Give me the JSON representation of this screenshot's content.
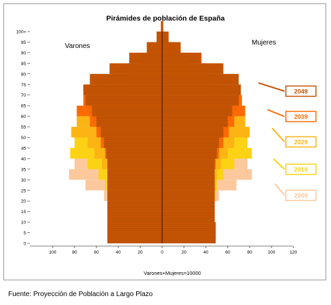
{
  "chart_data": {
    "type": "population-pyramid",
    "title": "Pirámides de población de España",
    "left_label": "Varones",
    "right_label": "Mujeres",
    "xlabel": "Varones+Mujeres=10000",
    "x_ticks_left": [
      "100",
      "80",
      "60",
      "40",
      "20",
      "0"
    ],
    "x_ticks_right": [
      "20",
      "40",
      "60",
      "80",
      "100",
      "120"
    ],
    "y_ticks": [
      "0",
      "5",
      "10",
      "15",
      "20",
      "25",
      "30",
      "35",
      "40",
      "45",
      "50",
      "55",
      "60",
      "65",
      "70",
      "75",
      "80",
      "85",
      "90",
      "95",
      "100+"
    ],
    "xlim_left": [
      100,
      0
    ],
    "xlim_right": [
      0,
      120
    ],
    "ages": [
      0,
      5,
      10,
      15,
      20,
      25,
      30,
      35,
      40,
      45,
      50,
      55,
      60,
      65,
      70,
      75,
      80,
      85,
      90,
      95,
      100
    ],
    "series": [
      {
        "name": "2009",
        "color": "#fcc89c",
        "men": [
          50,
          50,
          50,
          50,
          53,
          70,
          85,
          80,
          68,
          58,
          52,
          47,
          43,
          36,
          30,
          25,
          18,
          11,
          5,
          2,
          1
        ],
        "women": [
          49,
          49,
          48,
          48,
          52,
          68,
          82,
          78,
          66,
          57,
          52,
          48,
          46,
          42,
          38,
          34,
          26,
          17,
          8,
          3,
          1
        ]
      },
      {
        "name": "2019",
        "color": "#fcd214",
        "men": [
          50,
          50,
          50,
          50,
          50,
          52,
          58,
          68,
          84,
          80,
          67,
          56,
          48,
          42,
          34,
          28,
          20,
          13,
          6,
          2,
          1
        ],
        "women": [
          49,
          49,
          48,
          48,
          49,
          50,
          56,
          66,
          82,
          78,
          66,
          56,
          50,
          47,
          43,
          38,
          28,
          19,
          9,
          3,
          1
        ]
      },
      {
        "name": "2029",
        "color": "#fcb414",
        "men": [
          50,
          50,
          50,
          50,
          50,
          50,
          50,
          55,
          62,
          68,
          83,
          78,
          65,
          54,
          45,
          35,
          25,
          15,
          7,
          3,
          1
        ],
        "women": [
          49,
          49,
          48,
          48,
          48,
          49,
          50,
          54,
          60,
          66,
          80,
          76,
          65,
          57,
          51,
          44,
          33,
          21,
          11,
          4,
          1
        ]
      },
      {
        "name": "2039",
        "color": "#fc6a04",
        "men": [
          50,
          50,
          50,
          50,
          50,
          50,
          50,
          50,
          52,
          56,
          60,
          66,
          78,
          72,
          60,
          45,
          32,
          20,
          9,
          3,
          1
        ],
        "women": [
          49,
          49,
          48,
          48,
          48,
          48,
          48,
          49,
          52,
          56,
          61,
          66,
          76,
          73,
          62,
          52,
          40,
          26,
          13,
          5,
          1
        ]
      },
      {
        "name": "2049",
        "color": "#c45404",
        "men": [
          50,
          50,
          50,
          50,
          50,
          50,
          50,
          50,
          51,
          53,
          56,
          60,
          64,
          70,
          72,
          66,
          48,
          30,
          14,
          5,
          1
        ],
        "women": [
          49,
          49,
          48,
          48,
          48,
          48,
          48,
          48,
          50,
          52,
          56,
          60,
          64,
          70,
          72,
          70,
          56,
          36,
          17,
          6,
          1
        ]
      }
    ],
    "grid": false,
    "legend": "right"
  },
  "source_text": "Fuente: Proyección de Población a Largo Plazo"
}
